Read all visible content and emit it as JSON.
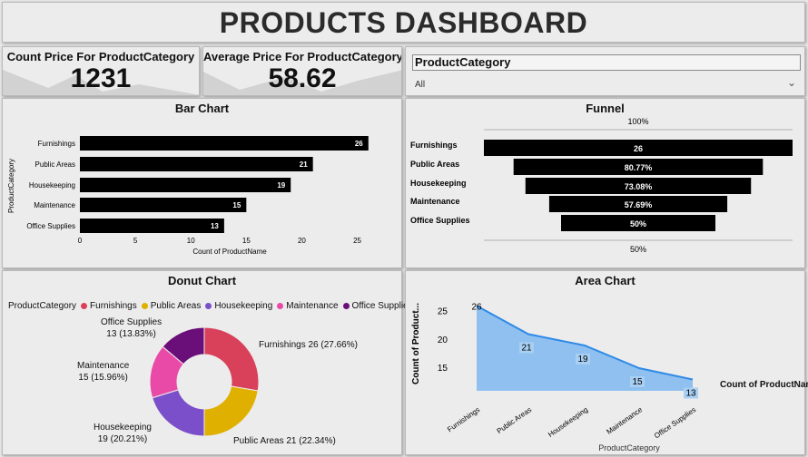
{
  "header": {
    "title": "PRODUCTS DASHBOARD"
  },
  "cards": [
    {
      "label": "Count Price For ProductCategory",
      "value": "1231"
    },
    {
      "label": "Average Price For ProductCategory",
      "value": "58.62"
    }
  ],
  "slicer": {
    "title": "ProductCategory",
    "value": "All",
    "chevron_icon": "chevron-down-icon"
  },
  "bar_chart": {
    "title": "Bar Chart"
  },
  "funnel": {
    "title": "Funnel",
    "top_label": "100%",
    "bottom_label": "50%"
  },
  "donut": {
    "title": "Donut Chart",
    "legend_title": "ProductCategory",
    "labels": [
      {
        "line1": "Furnishings 26 (27.66%)",
        "line2": ""
      },
      {
        "line1": "Public Areas 21 (22.34%)",
        "line2": ""
      },
      {
        "line1": "Housekeeping",
        "line2": "19 (20.21%)"
      },
      {
        "line1": "Maintenance",
        "line2": "15 (15.96%)"
      },
      {
        "line1": "Office Supplies",
        "line2": "13 (13.83%)"
      }
    ]
  },
  "area": {
    "title": "Area Chart",
    "series_label": "Count of ProductName"
  },
  "colors": {
    "bar": "#000000",
    "furnishings": "#d9415a",
    "public_areas": "#dfb000",
    "housekeeping": "#7b4fc9",
    "maintenance": "#e94aa8",
    "office_supplies": "#6a0f7a",
    "area_fill": "#8fc0f0",
    "area_line": "#2f8ae6"
  },
  "chart_data": [
    {
      "type": "bar",
      "orientation": "horizontal",
      "categories": [
        "Furnishings",
        "Public Areas",
        "Housekeeping",
        "Maintenance",
        "Office Supplies"
      ],
      "values": [
        26,
        21,
        19,
        15,
        13
      ],
      "xlabel": "Count of ProductName",
      "ylabel": "ProductCategory",
      "xticks": [
        "0",
        "5",
        "10",
        "15",
        "20",
        "25"
      ],
      "xlim": [
        0,
        27
      ],
      "data_labels": [
        "26",
        "21",
        "19",
        "15",
        "13"
      ]
    },
    {
      "type": "funnel",
      "categories": [
        "Furnishings",
        "Public Areas",
        "Housekeeping",
        "Maintenance",
        "Office Supplies"
      ],
      "values": [
        26,
        21,
        19,
        15,
        13
      ],
      "data_labels": [
        "26",
        "80.77%",
        "73.08%",
        "57.69%",
        "50%"
      ]
    },
    {
      "type": "pie",
      "donut": true,
      "categories": [
        "Furnishings",
        "Public Areas",
        "Housekeeping",
        "Maintenance",
        "Office Supplies"
      ],
      "values": [
        26,
        21,
        19,
        15,
        13
      ],
      "percents": [
        27.66,
        22.34,
        20.21,
        15.96,
        13.83
      ]
    },
    {
      "type": "area",
      "categories": [
        "Furnishings",
        "Public Areas",
        "Housekeeping",
        "Maintenance",
        "Office Supplies"
      ],
      "values": [
        26,
        21,
        19,
        15,
        13
      ],
      "data_labels": [
        "26",
        "21",
        "19",
        "15",
        "13"
      ],
      "xlabel": "ProductCategory",
      "ylabel": "Count of Product...",
      "yticks": [
        "25",
        "20",
        "15"
      ],
      "ylim": [
        11,
        27
      ]
    }
  ]
}
